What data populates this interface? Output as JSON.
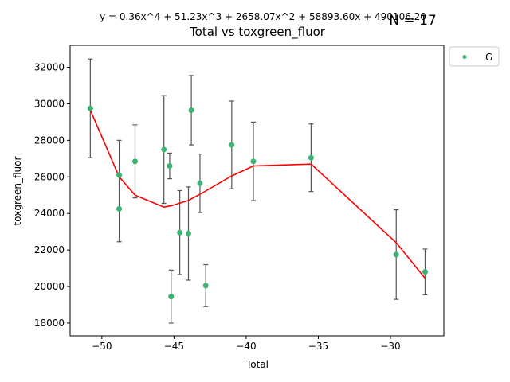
{
  "chart_data": {
    "type": "scatter",
    "title": "Total vs toxgreen_fluor",
    "equation": "y = 0.36x^4 + 51.23x^3 + 2658.07x^2 + 58893.60x + 490106.20",
    "n_label": "N = 17",
    "xlabel": "Total",
    "ylabel": "toxgreen_fluor",
    "xlim": [
      -52.2,
      -26.3
    ],
    "ylim": [
      17300,
      33200
    ],
    "xticks": [
      -50,
      -45,
      -40,
      -35,
      -30
    ],
    "yticks": [
      18000,
      20000,
      22000,
      24000,
      26000,
      28000,
      30000,
      32000
    ],
    "legend": {
      "label": "G",
      "placement": "outside-top-right"
    },
    "colors": {
      "points": "#3cb371",
      "fit": "#ff0000",
      "errorbars": "#555555"
    },
    "points": [
      {
        "x": -50.8,
        "y": 29750,
        "err": 2700
      },
      {
        "x": -48.8,
        "y": 26100,
        "err": 1900
      },
      {
        "x": -48.8,
        "y": 24250,
        "err": 1800
      },
      {
        "x": -47.7,
        "y": 26850,
        "err": 2000
      },
      {
        "x": -45.7,
        "y": 27500,
        "err": 2950
      },
      {
        "x": -45.3,
        "y": 26600,
        "err": 700
      },
      {
        "x": -45.2,
        "y": 19450,
        "err": 1450
      },
      {
        "x": -44.6,
        "y": 22950,
        "err": 2300
      },
      {
        "x": -44.0,
        "y": 22900,
        "err": 2550
      },
      {
        "x": -43.8,
        "y": 29650,
        "err": 1900
      },
      {
        "x": -43.2,
        "y": 25650,
        "err": 1600
      },
      {
        "x": -42.8,
        "y": 20050,
        "err": 1150
      },
      {
        "x": -41.0,
        "y": 27750,
        "err": 2400
      },
      {
        "x": -39.5,
        "y": 26850,
        "err": 2150
      },
      {
        "x": -35.5,
        "y": 27050,
        "err": 1850
      },
      {
        "x": -29.6,
        "y": 21750,
        "err": 2450
      },
      {
        "x": -27.6,
        "y": 20800,
        "err": 1250
      }
    ],
    "fit_line": [
      {
        "x": -50.8,
        "y": 29650
      },
      {
        "x": -48.8,
        "y": 26000
      },
      {
        "x": -47.7,
        "y": 25000
      },
      {
        "x": -45.7,
        "y": 24350
      },
      {
        "x": -45.2,
        "y": 24420
      },
      {
        "x": -44.6,
        "y": 24560
      },
      {
        "x": -44.0,
        "y": 24720
      },
      {
        "x": -43.2,
        "y": 25050
      },
      {
        "x": -41.0,
        "y": 26050
      },
      {
        "x": -39.5,
        "y": 26600
      },
      {
        "x": -35.5,
        "y": 26700
      },
      {
        "x": -29.6,
        "y": 22400
      },
      {
        "x": -27.6,
        "y": 20450
      }
    ]
  }
}
